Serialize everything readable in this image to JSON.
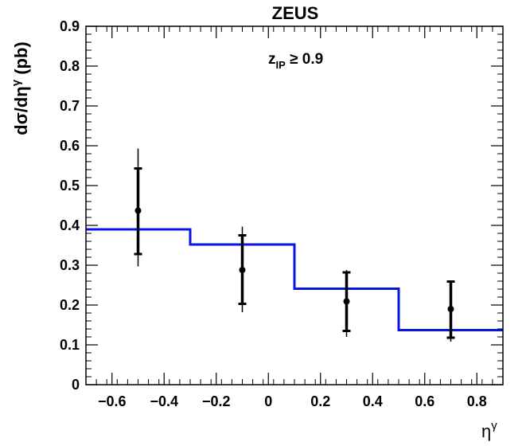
{
  "chart_data": {
    "type": "scatter",
    "title": "ZEUS",
    "xlabel": {
      "base": "η",
      "sup": "γ"
    },
    "ylabel": {
      "pre": "dσ/dη",
      "sup": "γ",
      "post": " (pb)"
    },
    "annotation": {
      "base": "z",
      "sub": "IP",
      "rest": " ≥ 0.9"
    },
    "xlim": [
      -0.7,
      0.9
    ],
    "ylim": [
      0,
      0.9
    ],
    "xticks": [
      -0.6,
      -0.4,
      -0.2,
      0,
      0.2,
      0.4,
      0.6,
      0.8
    ],
    "xtick_labels": [
      "−0.6",
      "−0.4",
      "−0.2",
      "0",
      "0.2",
      "0.4",
      "0.6",
      "0.8"
    ],
    "yticks": [
      0,
      0.1,
      0.2,
      0.3,
      0.4,
      0.5,
      0.6,
      0.7,
      0.8,
      0.9
    ],
    "ytick_labels": [
      "0",
      "0.1",
      "0.2",
      "0.3",
      "0.4",
      "0.5",
      "0.6",
      "0.7",
      "0.8",
      "0.9"
    ],
    "grid": false,
    "data_points": [
      {
        "x": -0.5,
        "y": 0.437,
        "stat_low": 0.328,
        "stat_high": 0.543,
        "tot_low": 0.297,
        "tot_high": 0.593
      },
      {
        "x": -0.1,
        "y": 0.288,
        "stat_low": 0.203,
        "stat_high": 0.375,
        "tot_low": 0.182,
        "tot_high": 0.397
      },
      {
        "x": 0.3,
        "y": 0.209,
        "stat_low": 0.135,
        "stat_high": 0.282,
        "tot_low": 0.12,
        "tot_high": 0.288
      },
      {
        "x": 0.7,
        "y": 0.19,
        "stat_low": 0.118,
        "stat_high": 0.259,
        "tot_low": 0.108,
        "tot_high": 0.262
      }
    ],
    "histogram": {
      "color": "#0a14e0",
      "bins": [
        {
          "x0": -0.7,
          "x1": -0.3,
          "y": 0.39
        },
        {
          "x0": -0.3,
          "x1": 0.1,
          "y": 0.352
        },
        {
          "x0": 0.1,
          "x1": 0.5,
          "y": 0.241
        },
        {
          "x0": 0.5,
          "x1": 0.9,
          "y": 0.137
        }
      ]
    }
  }
}
